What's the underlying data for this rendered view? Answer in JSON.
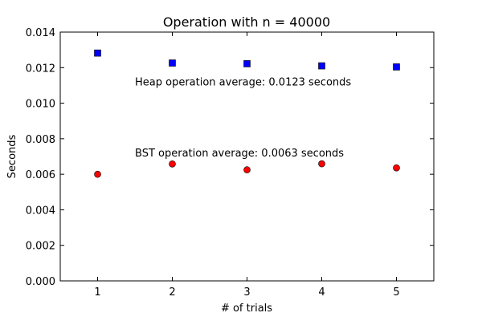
{
  "chart_data": {
    "type": "scatter",
    "title": "Operation with n = 40000",
    "xlabel": "# of trials",
    "ylabel": "Seconds",
    "xlim": [
      0.5,
      5.5
    ],
    "ylim": [
      0,
      0.014
    ],
    "x": [
      1,
      2,
      3,
      4,
      5
    ],
    "xticks": [
      1,
      2,
      3,
      4,
      5
    ],
    "xtick_labels": [
      "1",
      "2",
      "3",
      "4",
      "5"
    ],
    "yticks": [
      0,
      0.002,
      0.004,
      0.006,
      0.008,
      0.01,
      0.012,
      0.014
    ],
    "ytick_labels": [
      "0.000",
      "0.002",
      "0.004",
      "0.006",
      "0.008",
      "0.010",
      "0.012",
      "0.014"
    ],
    "grid": false,
    "series": [
      {
        "marker": "square",
        "color": "#0000ff",
        "values": [
          0.01282,
          0.01226,
          0.01222,
          0.0121,
          0.01204
        ]
      },
      {
        "marker": "circle",
        "color": "#ff0000",
        "values": [
          0.006,
          0.00658,
          0.00625,
          0.00659,
          0.00636
        ]
      }
    ],
    "annotations": [
      {
        "text": "Heap operation average: 0.0123 seconds",
        "x": 1.5,
        "y": 0.011
      },
      {
        "text": "BST operation average: 0.0063 seconds",
        "x": 1.5,
        "y": 0.007
      }
    ]
  }
}
